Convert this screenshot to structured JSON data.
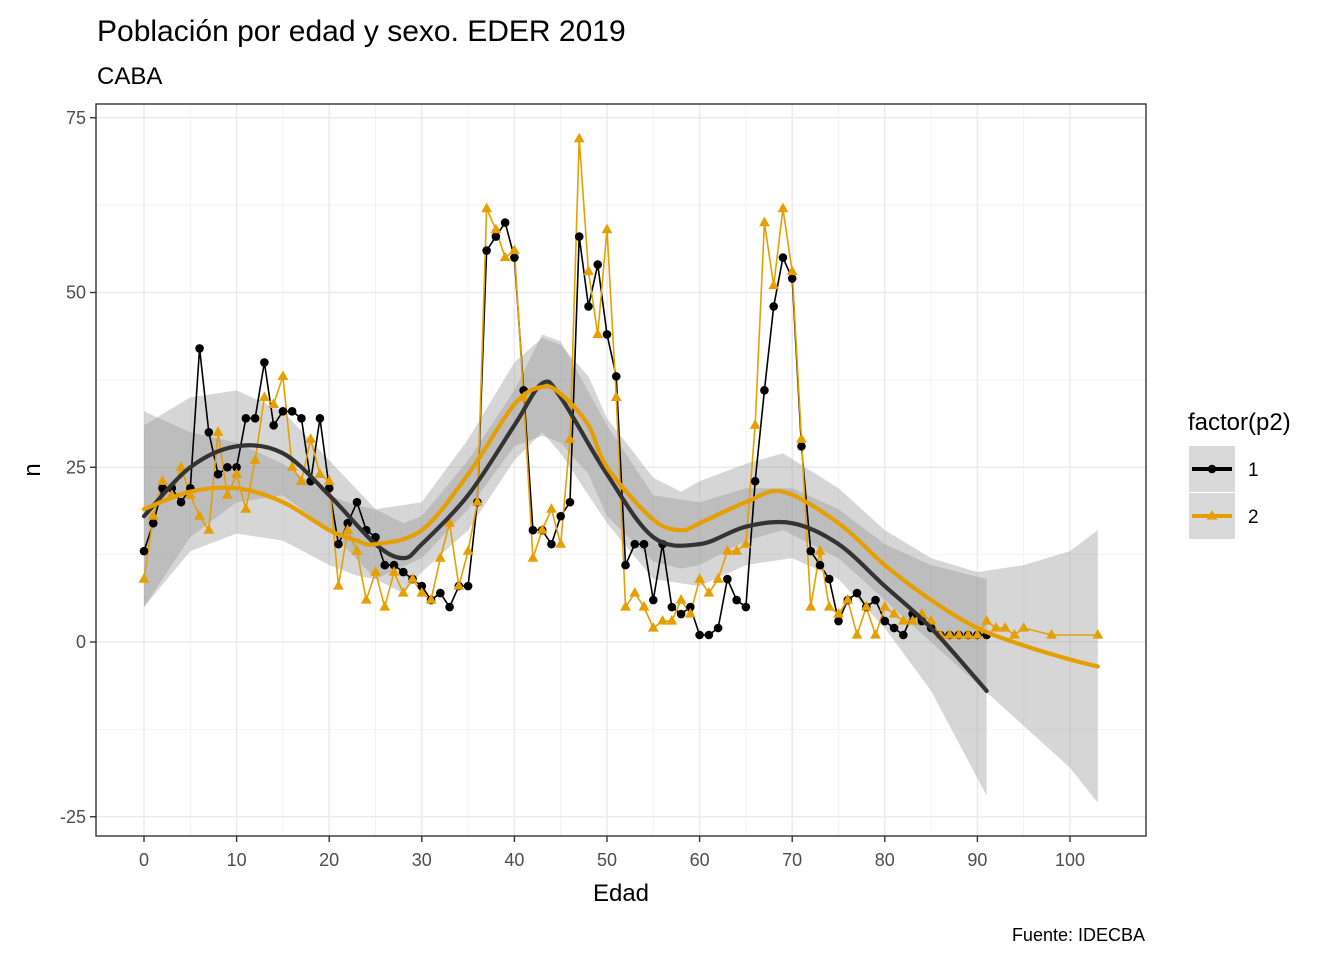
{
  "chart_data": {
    "type": "line",
    "title": "Población por edad y sexo. EDER 2019",
    "subtitle": "CABA",
    "xlabel": "Edad",
    "ylabel": "n",
    "caption": "Fuente: IDECBA",
    "xlim": [
      -5,
      108
    ],
    "ylim": [
      -28,
      77
    ],
    "xticks": [
      0,
      10,
      20,
      30,
      40,
      50,
      60,
      70,
      80,
      90,
      100
    ],
    "yticks": [
      -25,
      0,
      25,
      50,
      75
    ],
    "grid": true,
    "legend": {
      "title": "factor(p2)",
      "position": "right"
    },
    "series": [
      {
        "name": "1",
        "color": "#000000",
        "marker": "circle",
        "x": [
          0,
          1,
          2,
          3,
          4,
          5,
          6,
          7,
          8,
          9,
          10,
          11,
          12,
          13,
          14,
          15,
          16,
          17,
          18,
          19,
          20,
          21,
          22,
          23,
          24,
          25,
          26,
          27,
          28,
          29,
          30,
          31,
          32,
          33,
          34,
          35,
          36,
          37,
          38,
          39,
          40,
          41,
          42,
          43,
          44,
          45,
          46,
          47,
          48,
          49,
          50,
          51,
          52,
          53,
          54,
          55,
          56,
          57,
          58,
          59,
          60,
          61,
          62,
          63,
          64,
          65,
          66,
          67,
          68,
          69,
          70,
          71,
          72,
          73,
          74,
          75,
          76,
          77,
          78,
          79,
          80,
          81,
          82,
          83,
          84,
          85,
          86,
          87,
          88,
          89,
          90,
          91
        ],
        "y": [
          13,
          17,
          22,
          22,
          20,
          22,
          42,
          30,
          24,
          25,
          25,
          32,
          32,
          40,
          31,
          33,
          33,
          32,
          23,
          32,
          22,
          14,
          17,
          20,
          16,
          15,
          11,
          11,
          10,
          9,
          8,
          6,
          7,
          5,
          8,
          8,
          20,
          56,
          58,
          60,
          55,
          36,
          16,
          16,
          14,
          18,
          20,
          58,
          48,
          54,
          44,
          38,
          11,
          14,
          14,
          6,
          14,
          5,
          4,
          5,
          1,
          1,
          2,
          9,
          6,
          5,
          23,
          36,
          48,
          55,
          52,
          28,
          13,
          11,
          9,
          3,
          6,
          7,
          5,
          6,
          3,
          2,
          1,
          4,
          3,
          2,
          1,
          1,
          1,
          1,
          1,
          1
        ],
        "smooth": {
          "x": [
            0,
            5,
            10,
            15,
            20,
            25,
            28,
            30,
            35,
            40,
            43,
            45,
            50,
            55,
            60,
            65,
            70,
            75,
            80,
            85,
            91
          ],
          "y": [
            18,
            25,
            28,
            27,
            21,
            14,
            12,
            14,
            21,
            31,
            37,
            35,
            24,
            15,
            14,
            16.5,
            17,
            14,
            8,
            2,
            -7
          ],
          "ymin": [
            5,
            15,
            20,
            21,
            16,
            9,
            7,
            10,
            16,
            26,
            30,
            27,
            17,
            9,
            8,
            11,
            12,
            9,
            2,
            -7,
            -22
          ],
          "ymax": [
            31,
            35,
            36,
            33,
            26,
            19,
            17,
            18,
            26,
            36,
            44,
            43,
            31,
            21,
            20,
            22,
            22,
            19,
            14,
            11,
            9
          ]
        }
      },
      {
        "name": "2",
        "color": "#E69F00",
        "marker": "triangle",
        "x": [
          0,
          1,
          2,
          3,
          4,
          5,
          6,
          7,
          8,
          9,
          10,
          11,
          12,
          13,
          14,
          15,
          16,
          17,
          18,
          19,
          20,
          21,
          22,
          23,
          24,
          25,
          26,
          27,
          28,
          29,
          30,
          31,
          32,
          33,
          34,
          35,
          36,
          37,
          38,
          39,
          40,
          41,
          42,
          43,
          44,
          45,
          46,
          47,
          48,
          49,
          50,
          51,
          52,
          53,
          54,
          55,
          56,
          57,
          58,
          59,
          60,
          61,
          62,
          63,
          64,
          65,
          66,
          67,
          68,
          69,
          70,
          71,
          72,
          73,
          74,
          75,
          76,
          77,
          78,
          79,
          80,
          81,
          82,
          83,
          84,
          85,
          86,
          87,
          88,
          89,
          90,
          91,
          92,
          93,
          94,
          95,
          98,
          103
        ],
        "y": [
          9,
          18,
          23,
          21,
          25,
          21,
          18,
          16,
          30,
          21,
          24,
          19,
          26,
          35,
          34,
          38,
          25,
          23,
          29,
          24,
          23,
          8,
          16,
          13,
          6,
          10,
          5,
          10,
          7,
          9,
          7,
          6,
          12,
          17,
          8,
          13,
          20,
          62,
          59,
          55,
          56,
          35,
          12,
          16,
          19,
          14,
          29,
          72,
          53,
          44,
          59,
          35,
          5,
          7,
          5,
          2,
          3,
          3,
          6,
          4,
          9,
          7,
          9,
          13,
          13,
          14,
          31,
          60,
          51,
          62,
          53,
          29,
          5,
          13,
          5,
          4,
          6,
          1,
          5,
          1,
          5,
          4,
          3,
          3,
          4,
          3,
          1,
          1,
          1,
          1,
          1,
          3,
          2,
          2,
          1,
          2,
          1,
          1
        ],
        "smooth": {
          "x": [
            0,
            5,
            10,
            15,
            20,
            23,
            25,
            30,
            35,
            40,
            43,
            45,
            48,
            50,
            55,
            58,
            60,
            65,
            69,
            75,
            80,
            85,
            90,
            95,
            100,
            103
          ],
          "y": [
            19,
            21.5,
            22,
            20,
            16,
            14.5,
            14,
            16,
            24,
            34,
            36.5,
            35.5,
            31,
            25,
            17.5,
            16,
            17,
            20,
            21.5,
            17,
            11,
            6,
            2,
            -0.5,
            -2.5,
            -3.5
          ],
          "ymin": [
            5,
            13,
            15.5,
            14.5,
            11,
            9.5,
            9,
            12,
            19,
            28,
            29.5,
            28.5,
            24,
            18,
            11.5,
            10.5,
            11,
            14.5,
            16,
            12,
            6,
            0,
            -6,
            -12,
            -18,
            -23
          ],
          "ymax": [
            33,
            30,
            28.5,
            25.5,
            21,
            19.5,
            19,
            20,
            29,
            40,
            43.5,
            42.5,
            38,
            32,
            23.5,
            21.5,
            23,
            25.5,
            27,
            22,
            16,
            12,
            10,
            11,
            13,
            16
          ]
        }
      }
    ]
  }
}
